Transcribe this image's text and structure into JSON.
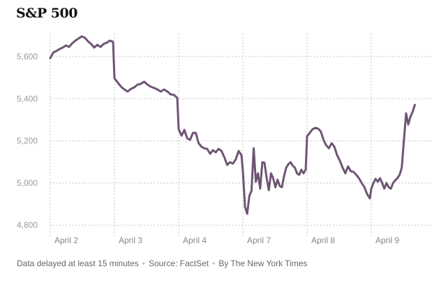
{
  "chart_data": {
    "type": "line",
    "title": "S&P 500",
    "xlabel": "",
    "ylabel": "",
    "ylim": [
      4780,
      5720
    ],
    "yticks": [
      4800,
      5000,
      5200,
      5400,
      5600
    ],
    "ytick_labels": [
      "4,800",
      "5,000",
      "5,200",
      "5,400",
      "5,600"
    ],
    "grid": true,
    "line_color": "#6e5573",
    "days": [
      {
        "label": "April 2",
        "session_fraction": 1,
        "values": [
          5593,
          5620,
          5627,
          5636,
          5643,
          5653,
          5646,
          5663,
          5676,
          5686,
          5696,
          5690,
          5673,
          5660,
          5643,
          5656,
          5646,
          5660,
          5666,
          5676,
          5670
        ]
      },
      {
        "label": "April 3",
        "session_fraction": 1,
        "values": [
          5497,
          5477,
          5457,
          5444,
          5434,
          5447,
          5454,
          5467,
          5471,
          5481,
          5467,
          5457,
          5451,
          5444,
          5434,
          5444,
          5434,
          5421,
          5418,
          5404
        ]
      },
      {
        "label": "April 4",
        "session_fraction": 1,
        "values": [
          5255,
          5225,
          5252,
          5212,
          5205,
          5238,
          5238,
          5189,
          5172,
          5165,
          5162,
          5139,
          5156,
          5146,
          5162,
          5152,
          5122,
          5086,
          5099,
          5092,
          5112,
          5152,
          5132
        ]
      },
      {
        "label": "April 7",
        "session_fraction": 1,
        "values": [
          5056,
          4887,
          4854,
          4940,
          4963,
          5165,
          5006,
          5046,
          4973,
          5099,
          5096,
          5023,
          4966,
          5046,
          5023,
          4980,
          5016,
          4986,
          4980,
          5033,
          5073,
          5089,
          5099,
          5083,
          5073,
          5046,
          5039,
          5063,
          5046,
          5063
        ]
      },
      {
        "label": "April 8",
        "session_fraction": 1,
        "values": [
          5222,
          5238,
          5255,
          5262,
          5258,
          5245,
          5205,
          5179,
          5165,
          5189,
          5172,
          5132,
          5106,
          5073,
          5046,
          5079,
          5056,
          5053,
          5039,
          5023,
          5000,
          4980,
          4947,
          4927
        ]
      },
      {
        "label": "April 9",
        "session_fraction": 0.7,
        "values": [
          4973,
          5000,
          5020,
          5006,
          5023,
          5000,
          4973,
          5000,
          4980,
          4973,
          5000,
          5013,
          5023,
          5039,
          5073,
          5205,
          5331,
          5278,
          5315,
          5338,
          5371
        ]
      }
    ]
  },
  "footer": {
    "delay_note": "Data delayed at least 15 minutes",
    "source": "Source: FactSet",
    "byline": "By The New York Times",
    "separator": "•"
  }
}
